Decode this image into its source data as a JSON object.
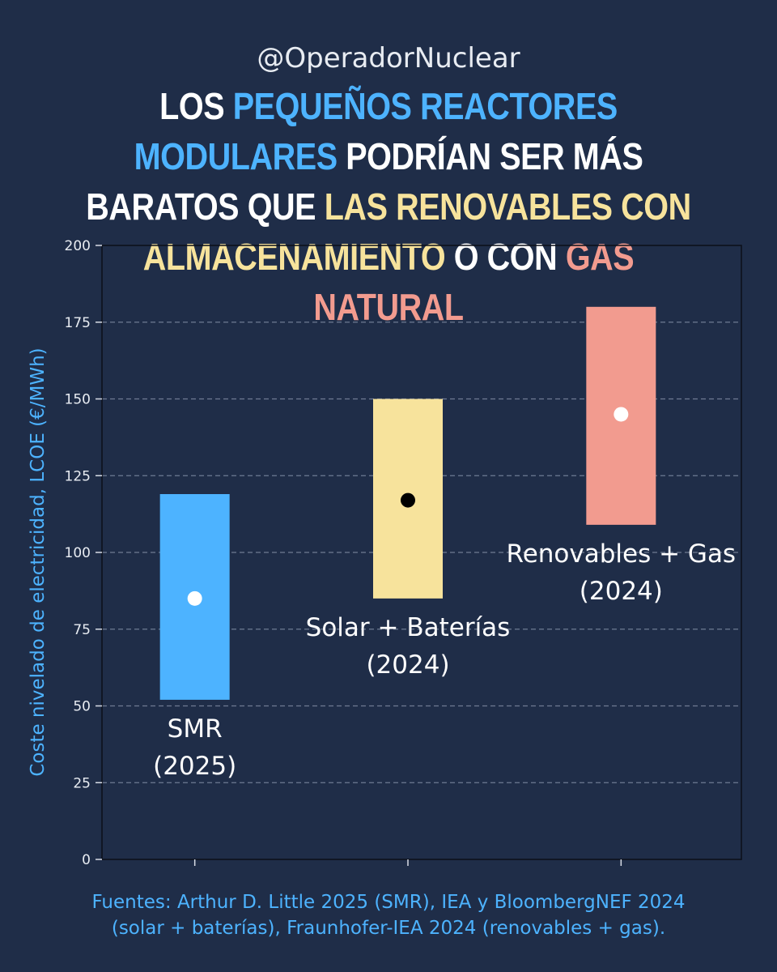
{
  "header": {
    "handle": "@OperadorNuclear",
    "headline_segments": [
      {
        "text": "Los ",
        "color": "white"
      },
      {
        "text": "pequeños reactores modulares",
        "color": "blue"
      },
      {
        "text": " podrían ser más baratos que ",
        "color": "white"
      },
      {
        "text": "las renovables con almacenamiento",
        "color": "yellow"
      },
      {
        "text": " o con ",
        "color": "white"
      },
      {
        "text": "gas natural",
        "color": "red"
      }
    ]
  },
  "colors": {
    "background": "#1f2d48",
    "smr": "#4db3ff",
    "solar": "#f7e39c",
    "gas": "#f29b8f",
    "axis_label": "#4db3ff"
  },
  "chart_data": {
    "type": "bar",
    "ylabel": "Coste nivelado de electricidad, LCOE (€/MWh)",
    "ylim": [
      0,
      200
    ],
    "yticks": [
      0,
      25,
      50,
      75,
      100,
      125,
      150,
      175,
      200
    ],
    "grid": "horizontal dashed",
    "series": [
      {
        "label_lines": [
          "SMR",
          "(2025)"
        ],
        "low": 52,
        "high": 119,
        "mid": 85,
        "color": "#4db3ff",
        "marker_color": "#ffffff"
      },
      {
        "label_lines": [
          "Solar + Baterías",
          "(2024)"
        ],
        "low": 85,
        "high": 150,
        "mid": 117,
        "color": "#f7e39c",
        "marker_color": "#000000"
      },
      {
        "label_lines": [
          "Renovables + Gas",
          "(2024)"
        ],
        "low": 109,
        "high": 180,
        "mid": 145,
        "color": "#f29b8f",
        "marker_color": "#ffffff"
      }
    ]
  },
  "footer": {
    "lines": [
      "Fuentes: Arthur D. Little 2025 (SMR), IEA y BloombergNEF 2024",
      "(solar + baterías), Fraunhofer-IEA 2024 (renovables + gas)."
    ]
  }
}
